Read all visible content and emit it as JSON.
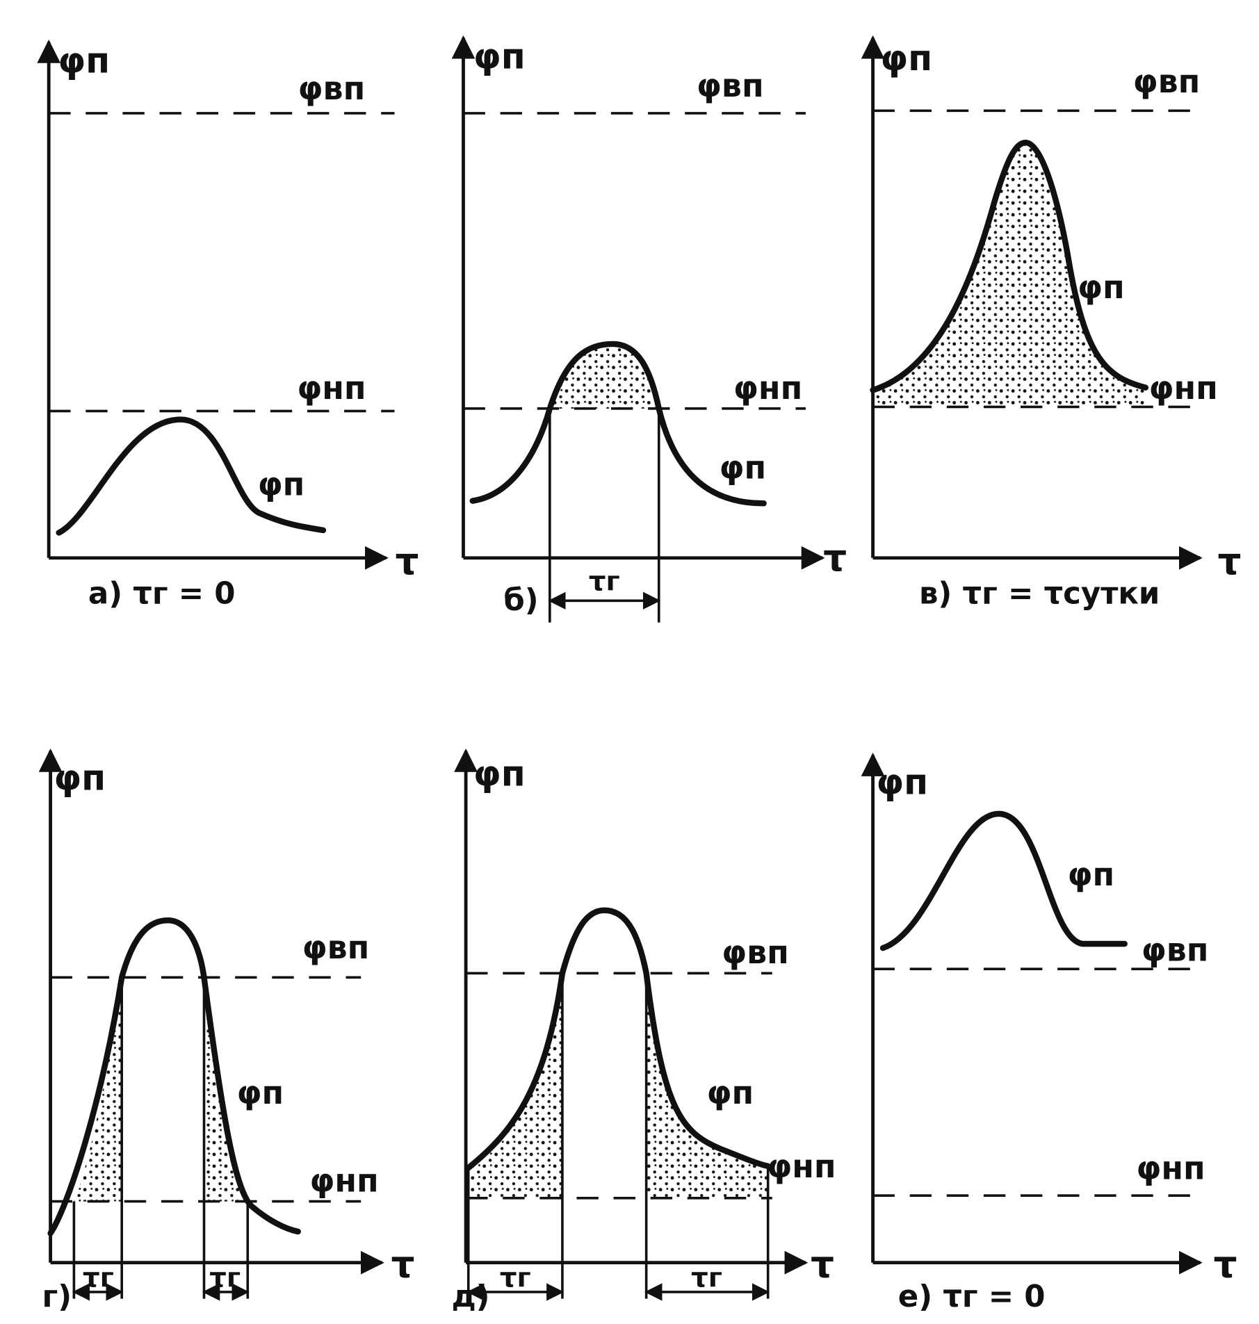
{
  "panels": [
    {
      "y_axis": "φп",
      "x_axis": "τ",
      "upper_level": "φвп",
      "lower_level": "φнп",
      "curve": "φп",
      "caption": "а) τг = 0"
    },
    {
      "y_axis": "φп",
      "x_axis": "τ",
      "upper_level": "φвп",
      "lower_level": "φнп",
      "curve": "φп",
      "caption": "б)",
      "intervals": [
        "τг"
      ]
    },
    {
      "y_axis": "φп",
      "x_axis": "τ",
      "upper_level": "φвп",
      "lower_level": "φнп",
      "curve": "φп",
      "caption": "в) τг = τсутки"
    },
    {
      "y_axis": "φп",
      "x_axis": "τ",
      "upper_level": "φвп",
      "lower_level": "φнп",
      "curve": "φп",
      "caption": "г)",
      "intervals": [
        "τг",
        "τг"
      ]
    },
    {
      "y_axis": "φп",
      "x_axis": "τ",
      "upper_level": "φвп",
      "lower_level": "φнп",
      "curve": "φп",
      "caption": "д)",
      "intervals": [
        "τг",
        "τг"
      ]
    },
    {
      "y_axis": "φп",
      "x_axis": "τ",
      "upper_level": "φвп",
      "lower_level": "φнп",
      "curve": "φп",
      "caption": "е) τг = 0"
    }
  ]
}
